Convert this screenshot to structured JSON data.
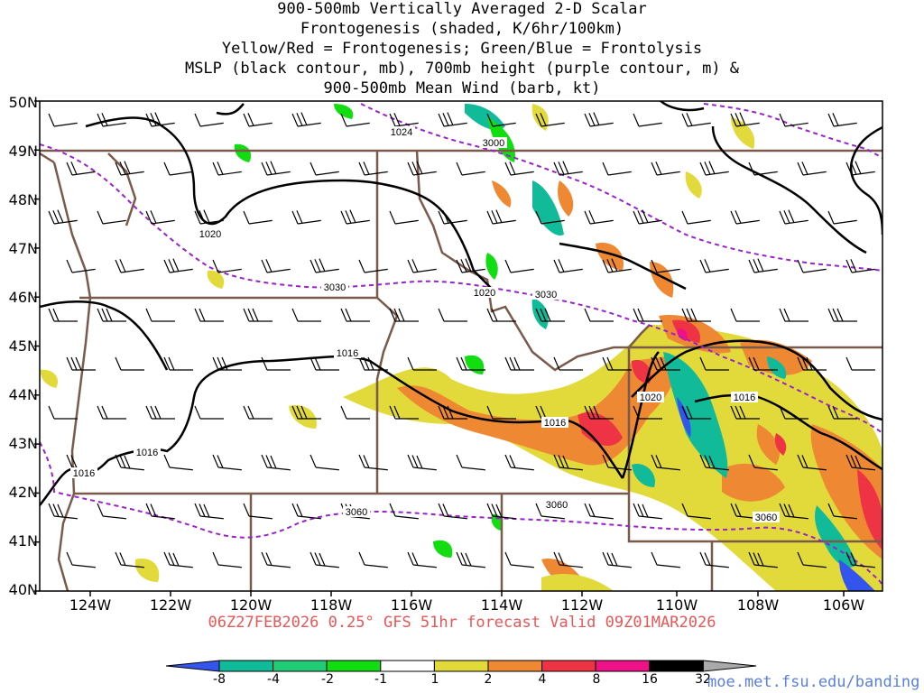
{
  "title_lines": [
    "900-500mb Vertically Averaged 2-D Scalar",
    "Frontogenesis (shaded, K/6hr/100km)",
    "Yellow/Red = Frontogenesis;  Green/Blue = Frontolysis",
    "MSLP (black contour, mb), 700mb height (purple contour, m) &",
    "900-500mb Mean Wind (barb, kt)"
  ],
  "latitude_labels": [
    "50N",
    "49N",
    "48N",
    "47N",
    "46N",
    "45N",
    "44N",
    "43N",
    "42N",
    "41N",
    "40N"
  ],
  "longitude_labels": [
    "124W",
    "122W",
    "120W",
    "118W",
    "116W",
    "114W",
    "112W",
    "110W",
    "108W",
    "106W"
  ],
  "valid_line": "06Z27FEB2026 0.25° GFS 51hr forecast Valid 09Z01MAR2026",
  "colorbar": {
    "labels": [
      "-8",
      "-4",
      "-2",
      "-1",
      "1",
      "2",
      "4",
      "8",
      "16",
      "32"
    ],
    "colors": [
      "#3355ee",
      "#11bb99",
      "#22cc77",
      "#11dd11",
      "#ffffff",
      "#e2d93a",
      "#ee8833",
      "#ee3344",
      "#ee1188",
      "#000000",
      "#aaaaaa"
    ]
  },
  "contour_labels": {
    "mslp": [
      "1024",
      "1020",
      "1020",
      "1020",
      "1016",
      "1016",
      "1016",
      "1016",
      "1016"
    ],
    "height_700": [
      "3000",
      "3030",
      "3030",
      "3060",
      "3060",
      "3060"
    ]
  },
  "source_url": "moe.met.fsu.edu/banding"
}
